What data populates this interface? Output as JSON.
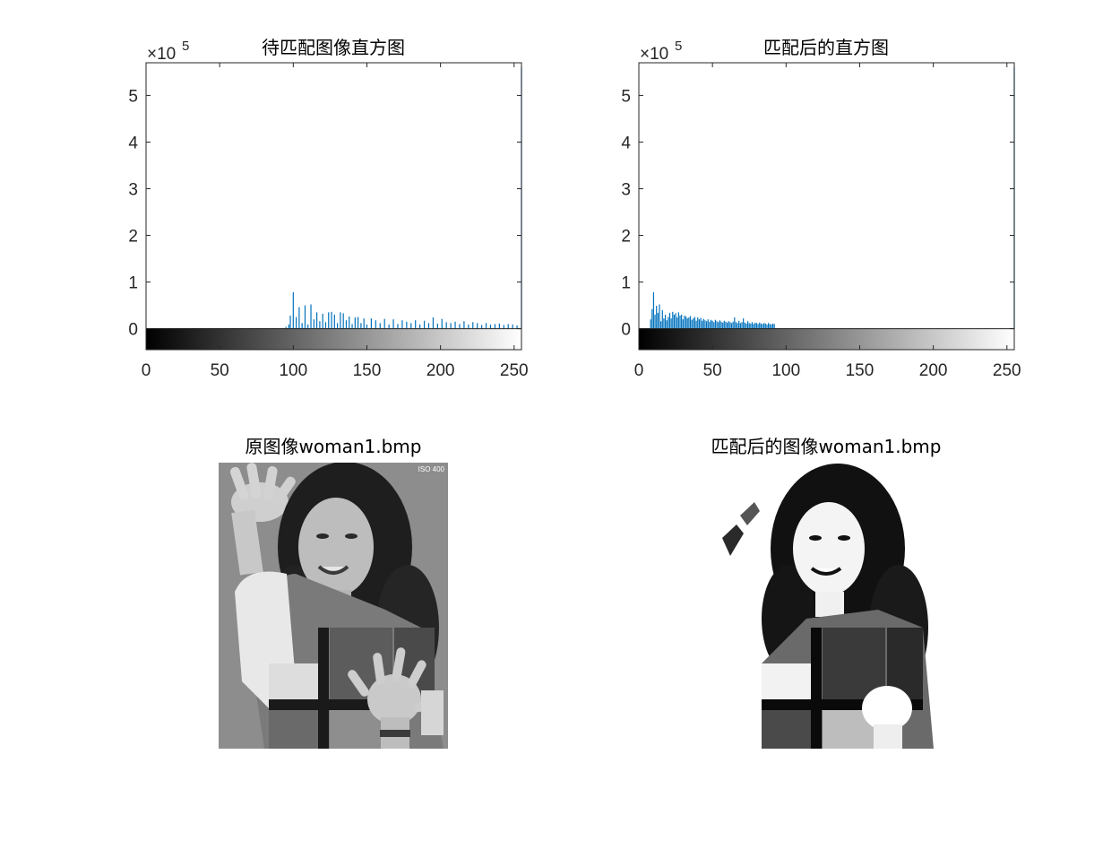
{
  "chart_data": [
    {
      "type": "bar",
      "title": "待匹配图像直方图",
      "xlim": [
        0,
        255
      ],
      "ylim": [
        -45000,
        570000
      ],
      "exponent_label": "×10",
      "exponent_power": "5",
      "xticks": [
        0,
        50,
        100,
        150,
        200,
        250
      ],
      "xtick_labels": [
        "0",
        "50",
        "100",
        "150",
        "200",
        "250"
      ],
      "yticks": [
        0,
        100000,
        200000,
        300000,
        400000,
        500000
      ],
      "ytick_labels": [
        "0",
        "1",
        "2",
        "3",
        "4",
        "5"
      ],
      "colorbar": "gray",
      "bar_color": "#0072BD",
      "x": [
        95,
        97,
        98,
        100,
        102,
        104,
        106,
        108,
        110,
        112,
        114,
        116,
        118,
        120,
        122,
        124,
        126,
        128,
        130,
        132,
        134,
        136,
        138,
        140,
        142,
        144,
        146,
        148,
        150,
        153,
        156,
        159,
        162,
        165,
        168,
        171,
        174,
        177,
        180,
        183,
        186,
        189,
        192,
        195,
        198,
        201,
        204,
        207,
        210,
        213,
        216,
        219,
        222,
        225,
        228,
        231,
        234,
        237,
        240,
        243,
        246,
        249,
        252,
        255
      ],
      "values": [
        4000,
        9000,
        28000,
        78000,
        25000,
        46000,
        12000,
        50000,
        9000,
        52000,
        20000,
        35000,
        16000,
        32000,
        14000,
        35000,
        36000,
        30000,
        12000,
        35000,
        33000,
        18000,
        26000,
        10000,
        24000,
        25000,
        12000,
        22000,
        9000,
        22000,
        18000,
        12000,
        21000,
        9000,
        20000,
        10000,
        18000,
        15000,
        12000,
        18000,
        9000,
        17000,
        12000,
        24000,
        11000,
        21000,
        14000,
        12000,
        15000,
        10000,
        16000,
        9000,
        14000,
        12000,
        8000,
        12000,
        9000,
        10000,
        11000,
        8000,
        10000,
        9000,
        7000,
        560000
      ]
    },
    {
      "type": "bar",
      "title": "匹配后的直方图",
      "xlim": [
        0,
        255
      ],
      "ylim": [
        -45000,
        570000
      ],
      "exponent_label": "×10",
      "exponent_power": "5",
      "xticks": [
        0,
        50,
        100,
        150,
        200,
        250
      ],
      "xtick_labels": [
        "0",
        "50",
        "100",
        "150",
        "200",
        "250"
      ],
      "yticks": [
        0,
        100000,
        200000,
        300000,
        400000,
        500000
      ],
      "ytick_labels": [
        "0",
        "1",
        "2",
        "3",
        "4",
        "5"
      ],
      "colorbar": "gray",
      "bar_color": "#0072BD",
      "x": [
        8,
        9,
        10,
        11,
        12,
        13,
        14,
        15,
        16,
        17,
        18,
        19,
        20,
        21,
        22,
        23,
        24,
        25,
        26,
        27,
        28,
        29,
        30,
        31,
        32,
        33,
        34,
        35,
        36,
        37,
        38,
        39,
        40,
        41,
        42,
        43,
        44,
        45,
        46,
        47,
        48,
        49,
        50,
        51,
        52,
        53,
        54,
        55,
        56,
        57,
        58,
        59,
        60,
        61,
        62,
        63,
        64,
        65,
        66,
        67,
        68,
        69,
        70,
        71,
        72,
        73,
        74,
        75,
        76,
        77,
        78,
        79,
        80,
        81,
        82,
        83,
        84,
        85,
        86,
        87,
        88,
        89,
        90,
        91,
        92,
        255
      ],
      "values": [
        20000,
        42000,
        78000,
        30000,
        49000,
        34000,
        52000,
        16000,
        40000,
        22000,
        30000,
        18000,
        25000,
        34000,
        22000,
        36000,
        30000,
        33000,
        24000,
        35000,
        28000,
        30000,
        20000,
        28000,
        26000,
        22000,
        24000,
        27000,
        19000,
        22000,
        25000,
        17000,
        24000,
        20000,
        23000,
        17000,
        21000,
        18000,
        16000,
        20000,
        15000,
        19000,
        17000,
        14000,
        19000,
        16000,
        14000,
        18000,
        15000,
        13000,
        17000,
        15000,
        13000,
        16000,
        14000,
        12000,
        15000,
        24000,
        14000,
        12000,
        17000,
        12000,
        14000,
        22000,
        13000,
        11000,
        16000,
        12000,
        11000,
        14000,
        10000,
        13000,
        12000,
        10000,
        13000,
        11000,
        10000,
        12000,
        11000,
        9000,
        12000,
        10000,
        9000,
        11000,
        10000,
        560000
      ]
    }
  ],
  "images": [
    {
      "title": "原图像woman1.bmp",
      "stamp": "ISO 400"
    },
    {
      "title": "匹配后的图像woman1.bmp"
    }
  ]
}
